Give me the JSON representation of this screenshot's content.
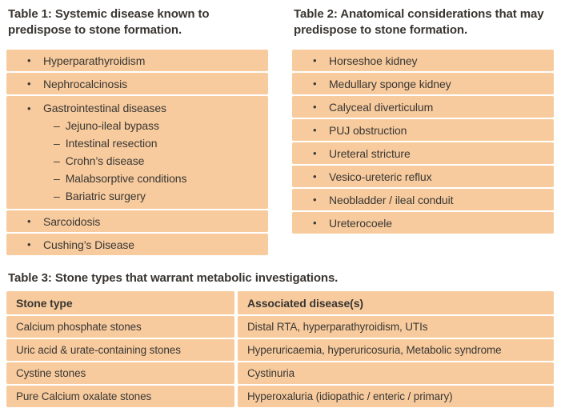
{
  "glyphs": {
    "bullet": "•",
    "dash": "–"
  },
  "style": {
    "row_bg": "#f7cb9e",
    "text": "#3b3733",
    "page_bg": "#ffffff"
  },
  "table1": {
    "title": "Table 1: Systemic disease known to predispose to stone formation.",
    "items": [
      {
        "label": "Hyperparathyroidism"
      },
      {
        "label": "Nephrocalcinosis"
      },
      {
        "label": "Gastrointestinal diseases",
        "sub": [
          "Jejuno-ileal bypass",
          "Intestinal resection",
          "Crohn’s disease",
          "Malabsorptive conditions",
          "Bariatric surgery"
        ]
      },
      {
        "label": "Sarcoidosis"
      },
      {
        "label": "Cushing’s Disease"
      }
    ]
  },
  "table2": {
    "title": "Table 2: Anatomical considerations that may predispose to stone formation.",
    "items": [
      {
        "label": "Horseshoe kidney"
      },
      {
        "label": "Medullary sponge kidney"
      },
      {
        "label": "Calyceal diverticulum"
      },
      {
        "label": "PUJ obstruction"
      },
      {
        "label": "Ureteral stricture"
      },
      {
        "label": "Vesico-ureteric reflux"
      },
      {
        "label": "Neobladder / ileal conduit"
      },
      {
        "label": "Ureterocoele"
      }
    ]
  },
  "table3": {
    "title": "Table 3: Stone types that warrant metabolic investigations.",
    "columns": [
      "Stone type",
      "Associated disease(s)"
    ],
    "rows": [
      [
        "Calcium phosphate stones",
        "Distal RTA, hyperparathyroidism, UTIs"
      ],
      [
        "Uric acid & urate-containing stones",
        "Hyperuricaemia, hyperuricosuria, Metabolic syndrome"
      ],
      [
        "Cystine stones",
        "Cystinuria"
      ],
      [
        "Pure Calcium oxalate stones",
        "Hyperoxaluria (idiopathic / enteric / primary)"
      ]
    ]
  }
}
